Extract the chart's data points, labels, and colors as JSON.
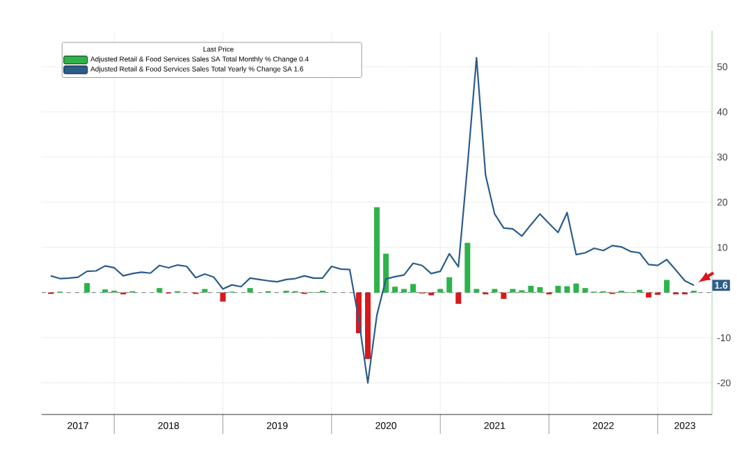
{
  "chart_data": {
    "type": "bar",
    "legend_title": "Last Price",
    "x": [
      "2017-06",
      "2017-07",
      "2017-08",
      "2017-09",
      "2017-10",
      "2017-11",
      "2017-12",
      "2018-01",
      "2018-02",
      "2018-03",
      "2018-04",
      "2018-05",
      "2018-06",
      "2018-07",
      "2018-08",
      "2018-09",
      "2018-10",
      "2018-11",
      "2018-12",
      "2019-01",
      "2019-02",
      "2019-03",
      "2019-04",
      "2019-05",
      "2019-06",
      "2019-07",
      "2019-08",
      "2019-09",
      "2019-10",
      "2019-11",
      "2019-12",
      "2020-01",
      "2020-02",
      "2020-03",
      "2020-04",
      "2020-05",
      "2020-06",
      "2020-07",
      "2020-08",
      "2020-09",
      "2020-10",
      "2020-11",
      "2020-12",
      "2021-01",
      "2021-02",
      "2021-03",
      "2021-04",
      "2021-05",
      "2021-06",
      "2021-07",
      "2021-08",
      "2021-09",
      "2021-10",
      "2021-11",
      "2021-12",
      "2022-01",
      "2022-02",
      "2022-03",
      "2022-04",
      "2022-05",
      "2022-06",
      "2022-07",
      "2022-08",
      "2022-09",
      "2022-10",
      "2022-11",
      "2022-12",
      "2023-01",
      "2023-02",
      "2023-03",
      "2023-04",
      "2023-05"
    ],
    "series": [
      {
        "name": "Adjusted Retail & Food Services Sales SA Total Monthly % Change    0.4",
        "color": "#2db34a",
        "values": [
          -0.3,
          0.2,
          null,
          null,
          2.1,
          null,
          0.7,
          0.4,
          -0.4,
          0.3,
          null,
          null,
          1.0,
          -0.2,
          0.3,
          null,
          -0.3,
          0.8,
          null,
          -2.0,
          0.2,
          null,
          1.0,
          null,
          0.3,
          null,
          0.4,
          0.3,
          -0.3,
          0.1,
          0.4,
          null,
          null,
          null,
          -9.0,
          -14.7,
          18.9,
          8.6,
          1.3,
          0.8,
          1.9,
          -0.2,
          -0.6,
          0.8,
          3.4,
          -2.5,
          11,
          0.8,
          -0.4,
          0.8,
          -1.4,
          0.8,
          0.5,
          1.5,
          1.2,
          -0.4,
          1.5,
          1.4,
          2.0,
          1.0,
          0.2,
          0.3,
          -0.3,
          0.4,
          0.1,
          0.6,
          -1.1,
          -0.5,
          2.8,
          -0.4,
          -0.4,
          0.4
        ],
        "colors": [
          "#d7191c",
          "#2db34a",
          null,
          null,
          "#2db34a",
          null,
          "#2db34a",
          "#2db34a",
          "#d7191c",
          "#2db34a",
          null,
          null,
          "#2db34a",
          "#d7191c",
          "#2db34a",
          null,
          "#d7191c",
          "#2db34a",
          null,
          "#d7191c",
          "#2db34a",
          null,
          "#2db34a",
          null,
          "#2db34a",
          null,
          "#2db34a",
          "#2db34a",
          "#d7191c",
          "#2db34a",
          "#2db34a",
          null,
          null,
          null,
          "#d7191c",
          "#d7191c",
          "#2db34a",
          "#2db34a",
          "#2db34a",
          "#2db34a",
          "#2db34a",
          "#d7191c",
          "#d7191c",
          "#2db34a",
          "#2db34a",
          "#d7191c",
          "#2db34a",
          "#2db34a",
          "#d7191c",
          "#2db34a",
          "#d7191c",
          "#2db34a",
          "#2db34a",
          "#2db34a",
          "#2db34a",
          "#d7191c",
          "#2db34a",
          "#2db34a",
          "#2db34a",
          "#2db34a",
          "#2db34a",
          "#2db34a",
          "#d7191c",
          "#2db34a",
          "#2db34a",
          "#2db34a",
          "#d7191c",
          "#d7191c",
          "#2db34a",
          "#d7191c",
          "#d7191c",
          "#2db34a"
        ]
      },
      {
        "name": "Adjusted Retail & Food Services Sales Total Yearly % Change SA    1.6",
        "type": "line",
        "color": "#2b5c8a",
        "values": [
          3.7,
          3.1,
          3.2,
          3.4,
          4.7,
          4.8,
          5.9,
          5.5,
          3.7,
          4.2,
          4.5,
          4.3,
          6.0,
          5.5,
          6.1,
          5.8,
          3.3,
          4.1,
          3.4,
          0.8,
          1.7,
          1.3,
          3.2,
          2.9,
          2.6,
          2.4,
          2.9,
          3.1,
          3.7,
          3.2,
          3.2,
          5.8,
          5.2,
          5.1,
          -6,
          -20,
          -5,
          3,
          3.5,
          3.9,
          6.5,
          6.0,
          4.2,
          4.7,
          8.6,
          5.7,
          28,
          52,
          26,
          17.4,
          14.3,
          14.1,
          12.5,
          15,
          17.4,
          15.3,
          13.3,
          17.7,
          8.4,
          8.8,
          9.8,
          9.3,
          10.4,
          10.1,
          9.1,
          8.8,
          6.2,
          6.0,
          7.3,
          5.0,
          2.6,
          1.6
        ]
      }
    ],
    "xlim": [
      "2017-05",
      "2023-07"
    ],
    "xticks": [
      {
        "value": "2018-01",
        "label": null
      },
      {
        "value": "2019-01",
        "label": null
      },
      {
        "value": "2020-01",
        "label": null
      },
      {
        "value": "2021-01",
        "label": null
      },
      {
        "value": "2022-01",
        "label": null
      },
      {
        "value": "2023-01",
        "label": null
      },
      {
        "value": "2017-09",
        "label": "2017"
      },
      {
        "value": "2018-07",
        "label": "2018"
      },
      {
        "value": "2019-07",
        "label": "2019"
      },
      {
        "value": "2020-07",
        "label": "2020"
      },
      {
        "value": "2021-07",
        "label": "2021"
      },
      {
        "value": "2022-07",
        "label": "2022"
      },
      {
        "value": "2023-04",
        "label": "2023"
      }
    ],
    "ylim": [
      -27,
      58
    ],
    "yticks": [
      -20,
      -10,
      {
        "value": 0,
        "label": null
      },
      10,
      20,
      30,
      40,
      50
    ],
    "ref_lines": [
      {
        "axis": "y",
        "value": 0,
        "line_style": "dashed",
        "color": "#555555"
      }
    ],
    "annotations": [
      {
        "text": "1.6",
        "y": 1.6
      }
    ],
    "grid": true,
    "legend": "top left"
  }
}
